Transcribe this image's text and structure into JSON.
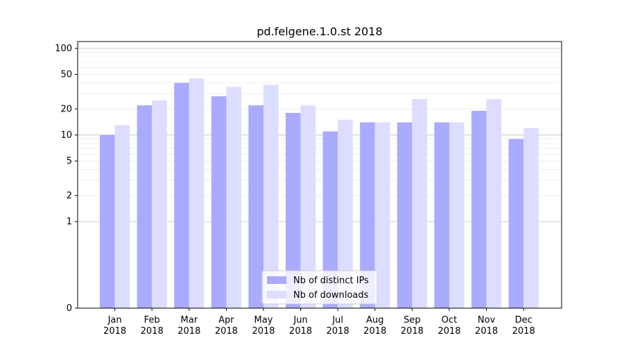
{
  "chart_data": {
    "type": "bar",
    "title": "pd.felgene.1.0.st 2018",
    "xlabel": "",
    "ylabel": "",
    "yscale": "symlog",
    "ylim": [
      0,
      120
    ],
    "yticks": [
      0,
      1,
      2,
      5,
      10,
      20,
      50,
      100
    ],
    "grid": true,
    "legend_position": "bottom-center",
    "categories": [
      "Jan\n2018",
      "Feb\n2018",
      "Mar\n2018",
      "Apr\n2018",
      "May\n2018",
      "Jun\n2018",
      "Jul\n2018",
      "Aug\n2018",
      "Sep\n2018",
      "Oct\n2018",
      "Nov\n2018",
      "Dec\n2018"
    ],
    "series": [
      {
        "name": "Nb of distinct IPs",
        "color": "#aaaaff",
        "values": [
          10,
          22,
          40,
          28,
          22,
          18,
          11,
          14,
          14,
          14,
          19,
          9
        ]
      },
      {
        "name": "Nb of downloads",
        "color": "#ddddff",
        "values": [
          13,
          25,
          45,
          36,
          38,
          22,
          15,
          14,
          26,
          14,
          26,
          12
        ]
      }
    ]
  }
}
